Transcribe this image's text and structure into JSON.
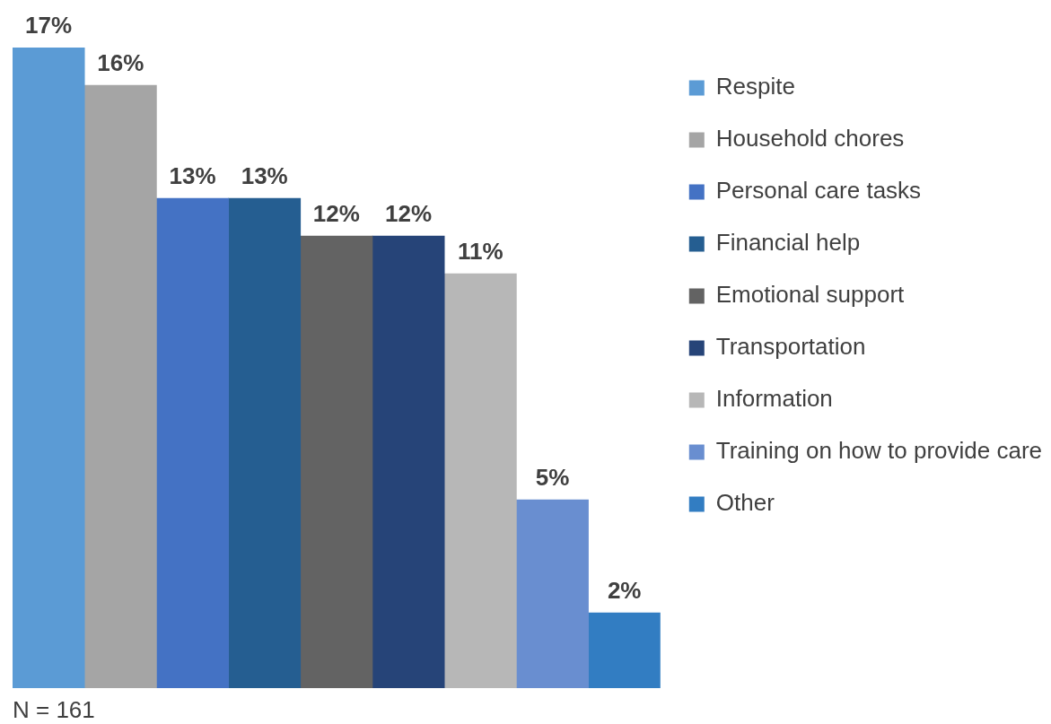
{
  "chart_data": {
    "type": "bar",
    "categories": [
      null
    ],
    "series": [
      {
        "name": "Respite",
        "color": "#5b9bd5",
        "values": [
          17
        ],
        "value_labels": [
          "17%"
        ]
      },
      {
        "name": "Household chores",
        "color": "#a5a5a5",
        "values": [
          16
        ],
        "value_labels": [
          "16%"
        ]
      },
      {
        "name": "Personal care tasks",
        "color": "#4472c4",
        "values": [
          13
        ],
        "value_labels": [
          "13%"
        ]
      },
      {
        "name": "Financial help",
        "color": "#255e91",
        "values": [
          13
        ],
        "value_labels": [
          "13%"
        ]
      },
      {
        "name": "Emotional support",
        "color": "#636363",
        "values": [
          12
        ],
        "value_labels": [
          "12%"
        ]
      },
      {
        "name": "Transportation",
        "color": "#264478",
        "values": [
          12
        ],
        "value_labels": [
          "12%"
        ]
      },
      {
        "name": "Information",
        "color": "#b7b7b7",
        "values": [
          11
        ],
        "value_labels": [
          "11%"
        ]
      },
      {
        "name": "Training on how to provide care",
        "color": "#698ed0",
        "values": [
          5
        ],
        "value_labels": [
          "5%"
        ]
      },
      {
        "name": "Other",
        "color": "#327dc2",
        "values": [
          2
        ],
        "value_labels": [
          "2%"
        ]
      }
    ],
    "ylim": [
      0,
      17
    ],
    "tick_labels": false,
    "grid": false,
    "legend": "right",
    "annotations": [
      "N = 161"
    ]
  }
}
